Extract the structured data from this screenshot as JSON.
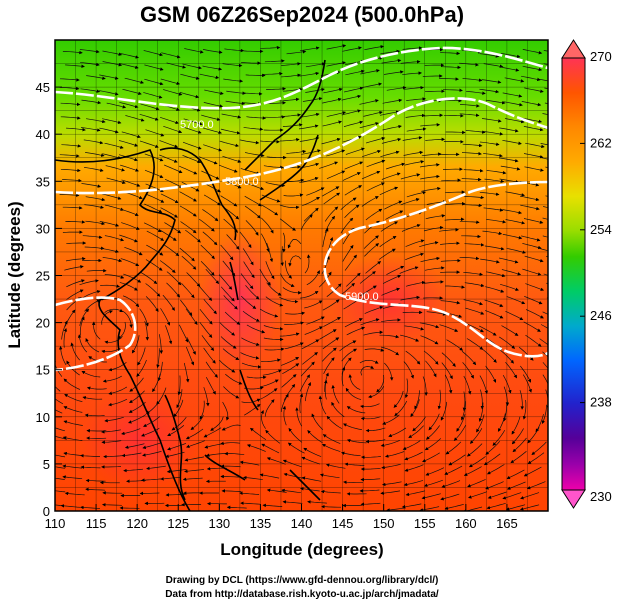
{
  "title": "GSM 06Z26Sep2024 (500.0hPa)",
  "x_axis": {
    "label": "Longitude (degrees)",
    "ticks": [
      "110",
      "115",
      "120",
      "125",
      "130",
      "135",
      "140",
      "145",
      "150",
      "155",
      "160",
      "165"
    ]
  },
  "y_axis": {
    "label": "Latitude  (degrees)",
    "ticks": [
      "0",
      "5",
      "10",
      "15",
      "20",
      "25",
      "30",
      "35",
      "40",
      "45"
    ]
  },
  "colorbar": {
    "ticks": [
      "270",
      "262",
      "254",
      "246",
      "238",
      "230"
    ],
    "stops": [
      "#ff3355",
      "#ff5500",
      "#ff8800",
      "#ffaa00",
      "#e8e000",
      "#99dd00",
      "#33cc00",
      "#00cc66",
      "#00aacc",
      "#0066ff",
      "#2222cc",
      "#550099",
      "#9900aa",
      "#ee00aa"
    ]
  },
  "contours": {
    "labels": [
      "5700.0",
      "5800.0",
      "5900.0"
    ]
  },
  "credits": {
    "line1": "Drawing by DCL (https://www.gfd-dennou.org/library/dcl/)",
    "line2": "Data from http://database.rish.kyoto-u.ac.jp/arch/jmadata/"
  },
  "map": {
    "lon_range": [
      110,
      170
    ],
    "lat_range": [
      0,
      50
    ],
    "variable": "temperature (K) with geopotential height contours and streamlines"
  }
}
